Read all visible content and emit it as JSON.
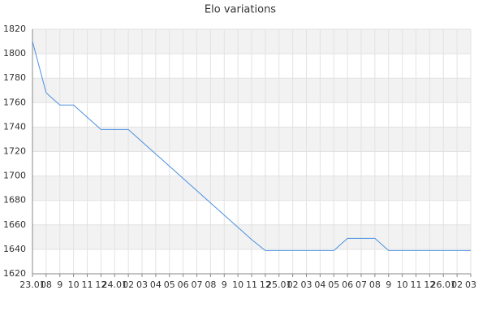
{
  "chart_data": {
    "type": "line",
    "title": "Elo variations",
    "categories": [
      "23.01",
      "08",
      "9",
      "10",
      "11",
      "12",
      "24.01",
      "02",
      "03",
      "04",
      "05",
      "06",
      "07",
      "08",
      "9",
      "10",
      "11",
      "12",
      "25.01",
      "02",
      "03",
      "04",
      "05",
      "06",
      "07",
      "08",
      "9",
      "10",
      "11",
      "12",
      "26.01",
      "02",
      "03"
    ],
    "values": [
      1810,
      1768,
      1758,
      1758,
      1748,
      1738,
      1738,
      1738,
      1728,
      1718,
      1708,
      1698,
      1688,
      1678,
      1668,
      1658,
      1648,
      1639,
      1639,
      1639,
      1639,
      1639,
      1639,
      1649,
      1649,
      1649,
      1639,
      1639,
      1639,
      1639,
      1639,
      1639,
      1639
    ],
    "color": "#4a90e2",
    "ylim": [
      1620,
      1820
    ],
    "yticks": [
      1620,
      1640,
      1660,
      1680,
      1700,
      1720,
      1740,
      1760,
      1780,
      1800,
      1820
    ],
    "grid": true,
    "bands": true
  }
}
